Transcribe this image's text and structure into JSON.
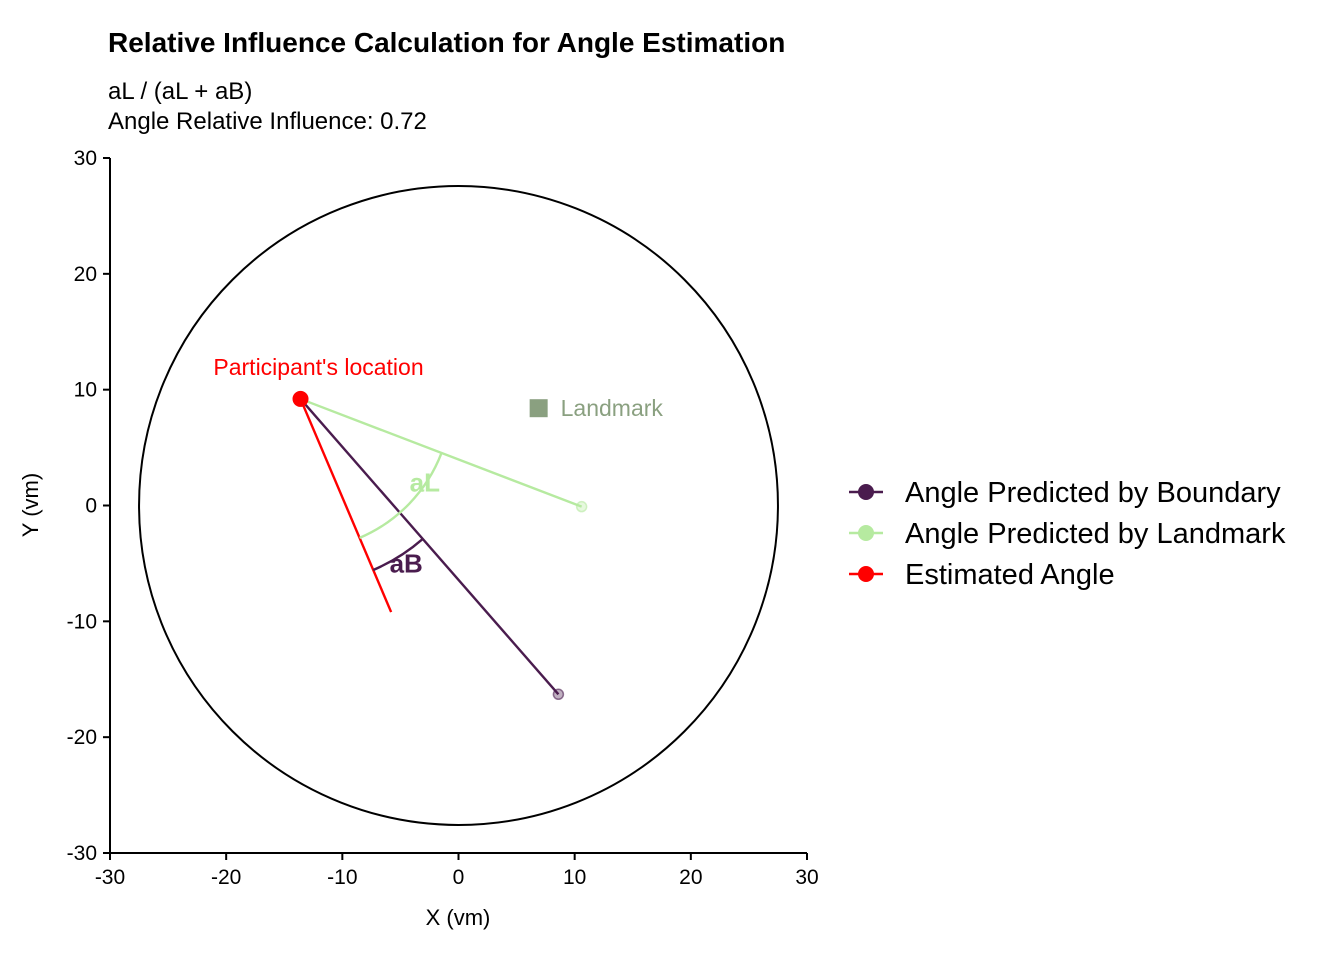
{
  "chart_data": {
    "type": "scatter",
    "title": "Relative Influence Calculation for Angle Estimation",
    "subtitle_lines": [
      "aL / (aL + aB)",
      "Angle Relative Influence: 0.72"
    ],
    "xlabel": "X (vm)",
    "ylabel": "Y (vm)",
    "xlim": [
      -30,
      30
    ],
    "ylim": [
      -30,
      30
    ],
    "x_ticks": [
      -30,
      -20,
      -10,
      0,
      10,
      20,
      30
    ],
    "y_ticks": [
      -30,
      -20,
      -10,
      0,
      10,
      20,
      30
    ],
    "grid": false,
    "legend_position": "right",
    "arena": {
      "center": [
        0,
        0
      ],
      "radius": 27.5,
      "color": "#000000"
    },
    "participant": {
      "x": -13.6,
      "y": 9.2,
      "label": "Participant's location",
      "color": "#ff0000"
    },
    "landmark": {
      "x": 6.9,
      "y": 8.4,
      "label": "Landmark",
      "color": "#8aa080"
    },
    "series": [
      {
        "name": "Angle Predicted by Boundary",
        "color": "#4a1c4e",
        "from": [
          -13.6,
          9.2
        ],
        "to": [
          8.6,
          -16.3
        ]
      },
      {
        "name": "Angle Predicted by Landmark",
        "color": "#b6eaa0",
        "from": [
          -13.6,
          9.2
        ],
        "to": [
          10.6,
          -0.1
        ]
      },
      {
        "name": "Estimated Angle",
        "color": "#ff0000",
        "from": [
          -13.6,
          9.2
        ],
        "to": [
          -5.8,
          -9.2
        ]
      }
    ],
    "arcs": [
      {
        "label": "aL",
        "color": "#b6eaa0",
        "radius": 13,
        "label_pos": [
          -2.9,
          1.8
        ],
        "between": [
          "Estimated Angle",
          "Angle Predicted by Landmark"
        ]
      },
      {
        "label": "aB",
        "color": "#4a1c4e",
        "radius": 16,
        "label_pos": [
          -4.5,
          -5.2
        ],
        "between": [
          "Estimated Angle",
          "Angle Predicted by Boundary"
        ]
      }
    ]
  }
}
